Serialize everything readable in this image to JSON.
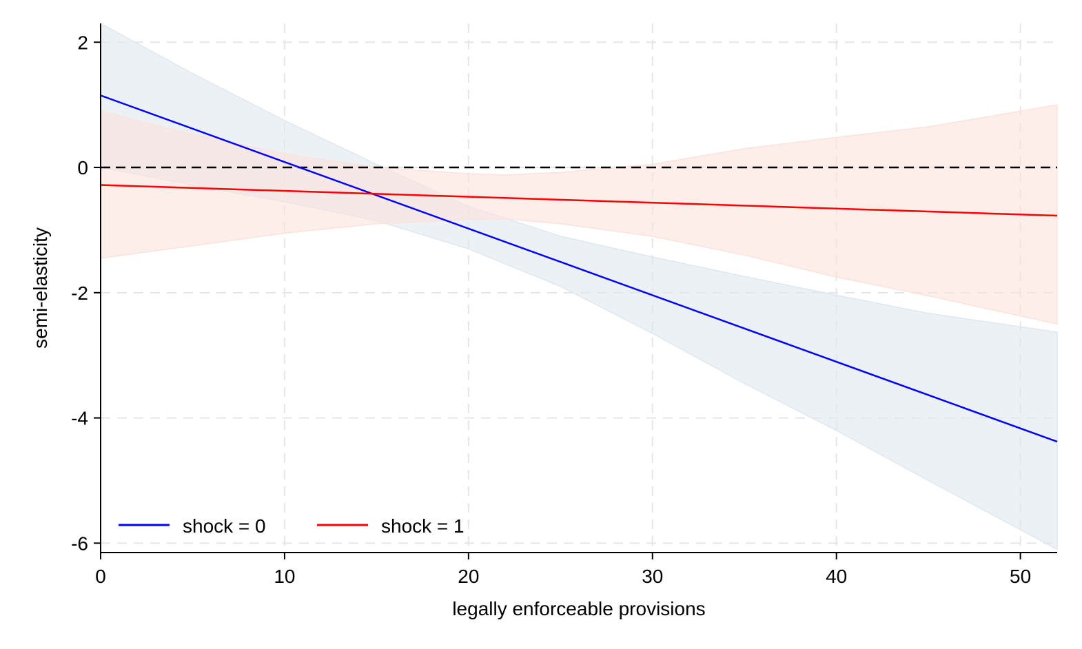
{
  "chart_data": {
    "type": "line",
    "title": "",
    "xlabel": "legally enforceable provisions",
    "ylabel": "semi-elasticity",
    "xlim": [
      0,
      52
    ],
    "ylim": [
      -6.15,
      2.3
    ],
    "xticks": [
      0,
      10,
      20,
      30,
      40,
      50
    ],
    "yticks": [
      2,
      0,
      -2,
      -4,
      -6
    ],
    "xtick_labels": [
      "0",
      "10",
      "20",
      "30",
      "40",
      "50"
    ],
    "ytick_labels": [
      "2",
      "0",
      "-2",
      "-4",
      "-6"
    ],
    "grid": true,
    "reference_line": {
      "y": 0,
      "style": "dashed",
      "color": "#000000"
    },
    "legend": {
      "placement": "bottom-left",
      "entries": [
        "shock = 0",
        "shock = 1"
      ]
    },
    "series": [
      {
        "name": "shock = 0",
        "color": "#0000ff",
        "band_color": "#dfe8ee",
        "x": [
          0,
          52
        ],
        "y": [
          1.15,
          -4.38
        ],
        "ci_x": [
          0,
          5,
          10,
          15,
          20,
          25,
          30,
          35,
          40,
          45,
          52
        ],
        "ci_lower": [
          0.0,
          -0.28,
          -0.55,
          -0.85,
          -1.3,
          -1.9,
          -2.65,
          -3.45,
          -4.2,
          -5.0,
          -6.1
        ],
        "ci_upper": [
          2.3,
          1.5,
          0.75,
          0.05,
          -0.62,
          -1.1,
          -1.43,
          -1.74,
          -2.04,
          -2.33,
          -2.63
        ]
      },
      {
        "name": "shock = 1",
        "color": "#ff0000",
        "band_color": "#fbe3dc",
        "x": [
          0,
          52
        ],
        "y": [
          -0.28,
          -0.77
        ],
        "ci_x": [
          0,
          5,
          10,
          15,
          20,
          22,
          25,
          30,
          35,
          40,
          45,
          52
        ],
        "ci_lower": [
          -1.45,
          -1.25,
          -1.05,
          -0.9,
          -0.83,
          -0.82,
          -0.9,
          -1.1,
          -1.4,
          -1.75,
          -2.05,
          -2.5
        ],
        "ci_upper": [
          0.9,
          0.53,
          0.22,
          0.0,
          -0.1,
          -0.12,
          -0.08,
          0.05,
          0.3,
          0.48,
          0.65,
          1.0
        ]
      }
    ]
  }
}
